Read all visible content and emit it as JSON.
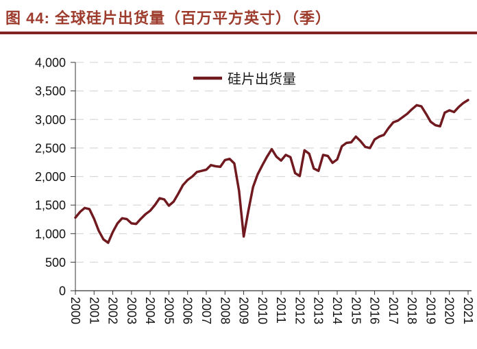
{
  "figure": {
    "title": "图 44:  全球硅片出货量（百万平方英寸）（季）",
    "title_color": "#9D3B2C",
    "rule_color": "#7E2222"
  },
  "chart_data": {
    "type": "line",
    "title": "全球硅片出货量（百万平方英寸）（季）",
    "legend_label": "硅片出货量",
    "legend_position": "top-center",
    "series_color": "#701A20",
    "grid": "horizontal-dashed",
    "grid_color": "#D9D9D9",
    "axis_color": "#333333",
    "label_color": "#111111",
    "frequency": "quarterly",
    "x_start": "2000Q1",
    "x_end": "2021Q1",
    "x_tick_labels": [
      "2000",
      "2001",
      "2002",
      "2003",
      "2004",
      "2005",
      "2006",
      "2007",
      "2008",
      "2009",
      "2010",
      "2011",
      "2012",
      "2013",
      "2014",
      "2015",
      "2016",
      "2017",
      "2018",
      "2019",
      "2020",
      "2021"
    ],
    "ylim": [
      0,
      4000
    ],
    "y_ticks": [
      0,
      500,
      1000,
      1500,
      2000,
      2500,
      3000,
      3500,
      4000
    ],
    "y_tick_labels": [
      "0",
      "500",
      "1,000",
      "1,500",
      "2,000",
      "2,500",
      "3,000",
      "3,500",
      "4,000"
    ],
    "series": [
      {
        "name": "硅片出货量",
        "values": [
          1280,
          1380,
          1450,
          1430,
          1260,
          1050,
          900,
          840,
          1030,
          1180,
          1270,
          1255,
          1180,
          1170,
          1260,
          1340,
          1400,
          1500,
          1620,
          1600,
          1490,
          1560,
          1700,
          1850,
          1940,
          2000,
          2080,
          2100,
          2120,
          2200,
          2180,
          2170,
          2290,
          2310,
          2230,
          1750,
          950,
          1400,
          1815,
          2040,
          2200,
          2350,
          2480,
          2350,
          2280,
          2380,
          2340,
          2060,
          2010,
          2460,
          2400,
          2140,
          2100,
          2380,
          2360,
          2240,
          2300,
          2530,
          2590,
          2600,
          2700,
          2620,
          2520,
          2500,
          2650,
          2700,
          2730,
          2850,
          2950,
          2980,
          3040,
          3100,
          3180,
          3250,
          3230,
          3100,
          2960,
          2900,
          2880,
          3120,
          3160,
          3130,
          3220,
          3290,
          3340
        ]
      }
    ]
  }
}
